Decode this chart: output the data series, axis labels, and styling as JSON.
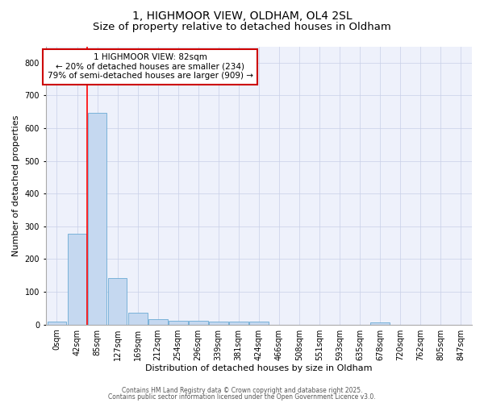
{
  "title1": "1, HIGHMOOR VIEW, OLDHAM, OL4 2SL",
  "title2": "Size of property relative to detached houses in Oldham",
  "xlabel": "Distribution of detached houses by size in Oldham",
  "ylabel": "Number of detached properties",
  "categories": [
    "0sqm",
    "42sqm",
    "85sqm",
    "127sqm",
    "169sqm",
    "212sqm",
    "254sqm",
    "296sqm",
    "339sqm",
    "381sqm",
    "424sqm",
    "466sqm",
    "508sqm",
    "551sqm",
    "593sqm",
    "635sqm",
    "678sqm",
    "720sqm",
    "762sqm",
    "805sqm",
    "847sqm"
  ],
  "values": [
    8,
    278,
    648,
    143,
    37,
    17,
    11,
    11,
    9,
    8,
    9,
    0,
    0,
    0,
    0,
    0,
    7,
    0,
    0,
    0,
    0
  ],
  "bar_color": "#c5d8f0",
  "bar_edge_color": "#6aaad4",
  "red_line_index": 2,
  "annotation_title": "1 HIGHMOOR VIEW: 82sqm",
  "annotation_line1": "← 20% of detached houses are smaller (234)",
  "annotation_line2": "79% of semi-detached houses are larger (909) →",
  "annotation_box_facecolor": "#ffffff",
  "annotation_box_edgecolor": "#cc0000",
  "ylim": [
    0,
    850
  ],
  "yticks": [
    0,
    100,
    200,
    300,
    400,
    500,
    600,
    700,
    800
  ],
  "background_color": "#eef1fb",
  "grid_color": "#c8cfe8",
  "footer1": "Contains HM Land Registry data © Crown copyright and database right 2025.",
  "footer2": "Contains public sector information licensed under the Open Government Licence v3.0.",
  "title1_fontsize": 10,
  "title2_fontsize": 9.5,
  "xlabel_fontsize": 8,
  "ylabel_fontsize": 8,
  "tick_fontsize": 7,
  "annotation_fontsize": 7.5,
  "footer_fontsize": 5.5
}
